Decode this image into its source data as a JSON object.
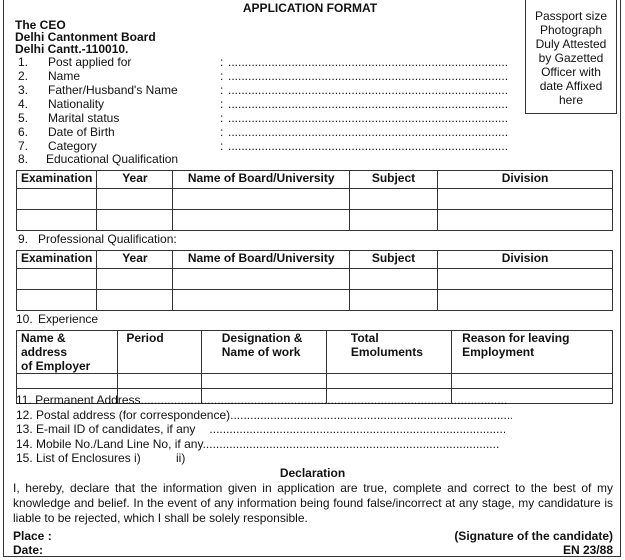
{
  "title": "APPLICATION FORMAT",
  "photo_box": [
    "Passport size",
    "Photograph",
    "Duly Attested",
    "by Gazetted",
    "Officer with",
    "date Affixed",
    "here"
  ],
  "address": [
    "The CEO",
    "Delhi Cantonment Board",
    "Delhi Cantt.-110010."
  ],
  "fields": [
    {
      "num": "1.",
      "label": "Post applied for"
    },
    {
      "num": "2.",
      "label": "Name"
    },
    {
      "num": "3.",
      "label": "Father/Husband's Name"
    },
    {
      "num": "4.",
      "label": "Nationality"
    },
    {
      "num": "5.",
      "label": "Marital status"
    },
    {
      "num": "6.",
      "label": "Date of Birth"
    },
    {
      "num": "7.",
      "label": "Category"
    }
  ],
  "colon": ":",
  "dots": "....................................................................................................................................................",
  "sec8": {
    "num": "8.",
    "label": "Educational Qualification"
  },
  "sec9": {
    "num": "9.",
    "label": "Professional Qualification:"
  },
  "sec10": {
    "num": "10.",
    "label": "Experience"
  },
  "qual_headers": [
    "Examination",
    "Year",
    "Name of Board/University",
    "Subject",
    "Division"
  ],
  "exp_headers": [
    [
      "Name & address",
      "of Employer"
    ],
    [
      "Period",
      ""
    ],
    [
      "Designation &",
      "Name of work"
    ],
    [
      "Total",
      "Emoluments"
    ],
    [
      "Reason  for leaving",
      "Employment"
    ]
  ],
  "items": [
    {
      "label": "11. Permanent Address"
    },
    {
      "label": "12. Postal address (for correspondence)"
    },
    {
      "label": "13. E-mail ID of candidates, if any"
    },
    {
      "label": "14. Mobile No./Land Line No, if any"
    }
  ],
  "enclosures": {
    "label": "15. List of Enclosures i)",
    "second": "ii)"
  },
  "declaration": {
    "heading": "Declaration",
    "text": "I, hereby, declare that the information given in application are true, complete and correct to the best of my knowledge and belief. In the event of any information being found false/incorrect at any stage, my candidature is liable to be rejected, which I shall be solely responsible."
  },
  "footer": {
    "place": "Place :",
    "date": "Date:",
    "signature": "(Signature of the candidate)",
    "code": "EN 23/88"
  }
}
